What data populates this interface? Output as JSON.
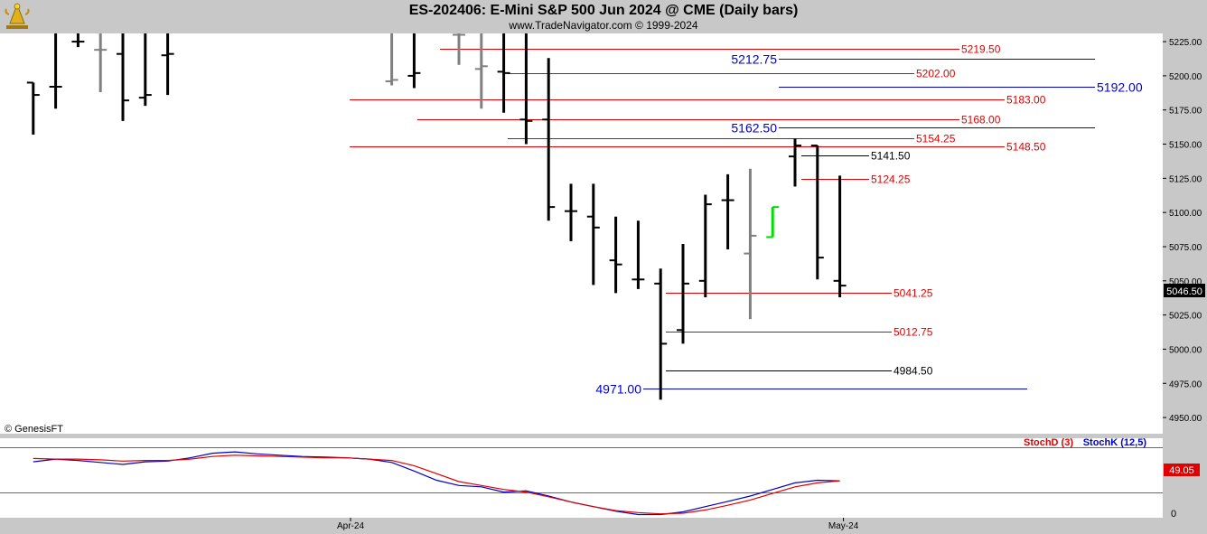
{
  "header": {
    "title": "ES-202406:  E-Mini S&P 500 Jun 2024 @ CME  (Daily bars)",
    "subtitle": "www.TradeNavigator.com © 1999-2024",
    "logo_icon": "gold-trophy-icon"
  },
  "copyright": "© GenesisFT",
  "colors": {
    "header_bg": "#c8c8c8",
    "axis_bg": "#c8c8c8",
    "bar_up_black": "#000000",
    "bar_gray": "#808080",
    "bar_green": "#00dd00",
    "red_level": "#e00000",
    "blue_level": "#0000cc",
    "stochD": "#e00000",
    "stochK": "#0000cc"
  },
  "chart_data": {
    "type": "ohlc",
    "title": "ES-202406:  E-Mini S&P 500 Jun 2024 @ CME  (Daily bars)",
    "price_axis": {
      "min": 4937.5,
      "max": 5231,
      "ticks": [
        "5225.00",
        "5200.00",
        "5175.00",
        "5150.00",
        "5125.00",
        "5100.00",
        "5075.00",
        "5050.00",
        "5025.00",
        "5000.00",
        "4975.00",
        "4950.00"
      ],
      "tick_values": [
        5225,
        5200,
        5175,
        5150,
        5125,
        5100,
        5075,
        5050,
        5025,
        5000,
        4975,
        4950
      ]
    },
    "last_price": "5046.50",
    "bars": [
      {
        "i": 1,
        "o": 5195,
        "h": 5195,
        "l": 5157,
        "c": 5186,
        "color": "black"
      },
      {
        "i": 2,
        "o": 5192,
        "h": 5231,
        "l": 5176,
        "c": 5192,
        "color": "black"
      },
      {
        "i": 3,
        "o": 5225,
        "h": 5231,
        "l": 5221,
        "c": 5225,
        "color": "black"
      },
      {
        "i": 4,
        "o": 5219,
        "h": 5231,
        "l": 5188,
        "c": 5219,
        "color": "gray"
      },
      {
        "i": 5,
        "o": 5216,
        "h": 5231,
        "l": 5167,
        "c": 5182,
        "color": "black"
      },
      {
        "i": 6,
        "o": 5184,
        "h": 5231,
        "l": 5178,
        "c": 5186,
        "color": "black"
      },
      {
        "i": 7,
        "o": 5215,
        "h": 5231,
        "l": 5186,
        "c": 5216,
        "color": "black"
      },
      {
        "i": 17,
        "o": 5196,
        "h": 5231,
        "l": 5193,
        "c": 5197,
        "color": "gray"
      },
      {
        "i": 18,
        "o": 5200,
        "h": 5231,
        "l": 5191,
        "c": 5202,
        "color": "black"
      },
      {
        "i": 20,
        "o": 5230,
        "h": 5231,
        "l": 5208,
        "c": 5230,
        "color": "gray"
      },
      {
        "i": 21,
        "o": 5205,
        "h": 5231,
        "l": 5176,
        "c": 5207,
        "color": "gray"
      },
      {
        "i": 22,
        "o": 5203,
        "h": 5231,
        "l": 5173,
        "c": 5202,
        "color": "black"
      },
      {
        "i": 23,
        "o": 5168,
        "h": 5231,
        "l": 5150,
        "c": 5167,
        "color": "black"
      },
      {
        "i": 24,
        "o": 5168,
        "h": 5213,
        "l": 5094,
        "c": 5104,
        "color": "black"
      },
      {
        "i": 25,
        "o": 5101,
        "h": 5121,
        "l": 5079,
        "c": 5101,
        "color": "black"
      },
      {
        "i": 26,
        "o": 5097,
        "h": 5121,
        "l": 5047,
        "c": 5089,
        "color": "black"
      },
      {
        "i": 27,
        "o": 5065,
        "h": 5097,
        "l": 5041,
        "c": 5062,
        "color": "black"
      },
      {
        "i": 28,
        "o": 5051,
        "h": 5094,
        "l": 5044,
        "c": 5051,
        "color": "black"
      },
      {
        "i": 29,
        "o": 5048,
        "h": 5059,
        "l": 4963,
        "c": 5004,
        "color": "black"
      },
      {
        "i": 30,
        "o": 5014,
        "h": 5077,
        "l": 5004,
        "c": 5048,
        "color": "black"
      },
      {
        "i": 31,
        "o": 5050,
        "h": 5113,
        "l": 5038,
        "c": 5106,
        "color": "black"
      },
      {
        "i": 32,
        "o": 5109,
        "h": 5128,
        "l": 5073,
        "c": 5109,
        "color": "black"
      },
      {
        "i": 33,
        "o": 5070,
        "h": 5132,
        "l": 5022,
        "c": 5083,
        "color": "gray"
      },
      {
        "i": 34,
        "o": 5082,
        "h": 5104,
        "l": 5082,
        "c": 5104,
        "color": "green"
      },
      {
        "i": 35,
        "o": 5141,
        "h": 5154,
        "l": 5119,
        "c": 5149,
        "color": "black"
      },
      {
        "i": 36,
        "o": 5149,
        "h": 5149,
        "l": 5051,
        "c": 5067,
        "color": "black"
      },
      {
        "i": 37,
        "o": 5050,
        "h": 5127,
        "l": 5038,
        "c": 5046.5,
        "color": "black"
      }
    ],
    "levels": [
      {
        "value": 5219.5,
        "label": "5219.50",
        "color": "red",
        "x0": 0.365,
        "x1": 1.0
      },
      {
        "value": 5212.75,
        "label": "5212.75",
        "color": "blue",
        "x0": 0.0,
        "x1": 1.0
      },
      {
        "value": 5202.0,
        "label": "5202.00",
        "color": "red",
        "x0": 0.0,
        "x1": 1.0
      },
      {
        "value": 5192.0,
        "label": "5192.00",
        "color": "blue",
        "x0": 0.0,
        "x1": 1.0
      },
      {
        "value": 5183.0,
        "label": "5183.00",
        "color": "red",
        "x0": 0.0,
        "x1": 1.0
      },
      {
        "value": 5168.0,
        "label": "5168.00",
        "color": "red",
        "x0": 0.0,
        "x1": 1.0
      },
      {
        "value": 5162.5,
        "label": "5162.50",
        "color": "blue",
        "x0": 0.0,
        "x1": 1.0
      },
      {
        "value": 5154.25,
        "label": "5154.25",
        "color": "red",
        "x0": 0.0,
        "x1": 1.0
      },
      {
        "value": 5148.5,
        "label": "5148.50",
        "color": "red",
        "x0": 0.0,
        "x1": 1.0
      },
      {
        "value": 5141.5,
        "label": "5141.50",
        "color": "black",
        "x0": 0.0,
        "x1": 1.0
      },
      {
        "value": 5124.25,
        "label": "5124.25",
        "color": "red",
        "x0": 0.0,
        "x1": 1.0
      },
      {
        "value": 5041.25,
        "label": "5041.25",
        "color": "red",
        "x0": 0.0,
        "x1": 1.0
      },
      {
        "value": 5012.75,
        "label": "5012.75",
        "color": "red",
        "x0": 0.0,
        "x1": 1.0
      },
      {
        "value": 4984.5,
        "label": "4984.50",
        "color": "black",
        "x0": 0.0,
        "x1": 1.0
      },
      {
        "value": 4971.0,
        "label": "4971.00",
        "color": "blue",
        "x0": 0.0,
        "x1": 1.0
      }
    ],
    "x_labels": [
      {
        "label": "Apr-24",
        "i": 15
      },
      {
        "label": "May-24",
        "i": 37
      }
    ],
    "stoch": {
      "legend_d": "StochD (3)",
      "legend_k": "StochK (12,5)",
      "last_value": "49.05",
      "axis_label": "0",
      "min": 0,
      "max": 100,
      "d_values": [
        [
          1,
          83
        ],
        [
          2,
          82
        ],
        [
          3,
          82
        ],
        [
          4,
          81
        ],
        [
          5,
          79
        ],
        [
          6,
          80
        ],
        [
          7,
          80
        ],
        [
          8,
          82
        ],
        [
          9,
          86
        ],
        [
          10,
          88
        ],
        [
          11,
          87
        ],
        [
          12,
          86
        ],
        [
          13,
          85
        ],
        [
          14,
          84
        ],
        [
          15,
          84
        ],
        [
          16,
          82
        ],
        [
          17,
          80
        ],
        [
          18,
          72
        ],
        [
          19,
          60
        ],
        [
          20,
          48
        ],
        [
          21,
          42
        ],
        [
          22,
          36
        ],
        [
          23,
          32
        ],
        [
          24,
          25
        ],
        [
          25,
          17
        ],
        [
          26,
          10
        ],
        [
          27,
          4
        ],
        [
          28,
          1
        ],
        [
          29,
          -1
        ],
        [
          30,
          0
        ],
        [
          31,
          5
        ],
        [
          32,
          12
        ],
        [
          33,
          20
        ],
        [
          34,
          30
        ],
        [
          35,
          40
        ],
        [
          36,
          46
        ],
        [
          37,
          49
        ]
      ],
      "k_values": [
        [
          1,
          78
        ],
        [
          2,
          82
        ],
        [
          3,
          80
        ],
        [
          4,
          77
        ],
        [
          5,
          74
        ],
        [
          6,
          78
        ],
        [
          7,
          79
        ],
        [
          8,
          84
        ],
        [
          9,
          91
        ],
        [
          10,
          93
        ],
        [
          11,
          90
        ],
        [
          12,
          88
        ],
        [
          13,
          86
        ],
        [
          14,
          85
        ],
        [
          15,
          84
        ],
        [
          16,
          82
        ],
        [
          17,
          77
        ],
        [
          18,
          64
        ],
        [
          19,
          50
        ],
        [
          20,
          42
        ],
        [
          21,
          40
        ],
        [
          22,
          32
        ],
        [
          23,
          34
        ],
        [
          24,
          26
        ],
        [
          25,
          17
        ],
        [
          26,
          10
        ],
        [
          27,
          3
        ],
        [
          28,
          -2
        ],
        [
          29,
          -2
        ],
        [
          30,
          2
        ],
        [
          31,
          10
        ],
        [
          32,
          18
        ],
        [
          33,
          26
        ],
        [
          34,
          36
        ],
        [
          35,
          46
        ],
        [
          36,
          50
        ],
        [
          37,
          49
        ]
      ]
    }
  }
}
